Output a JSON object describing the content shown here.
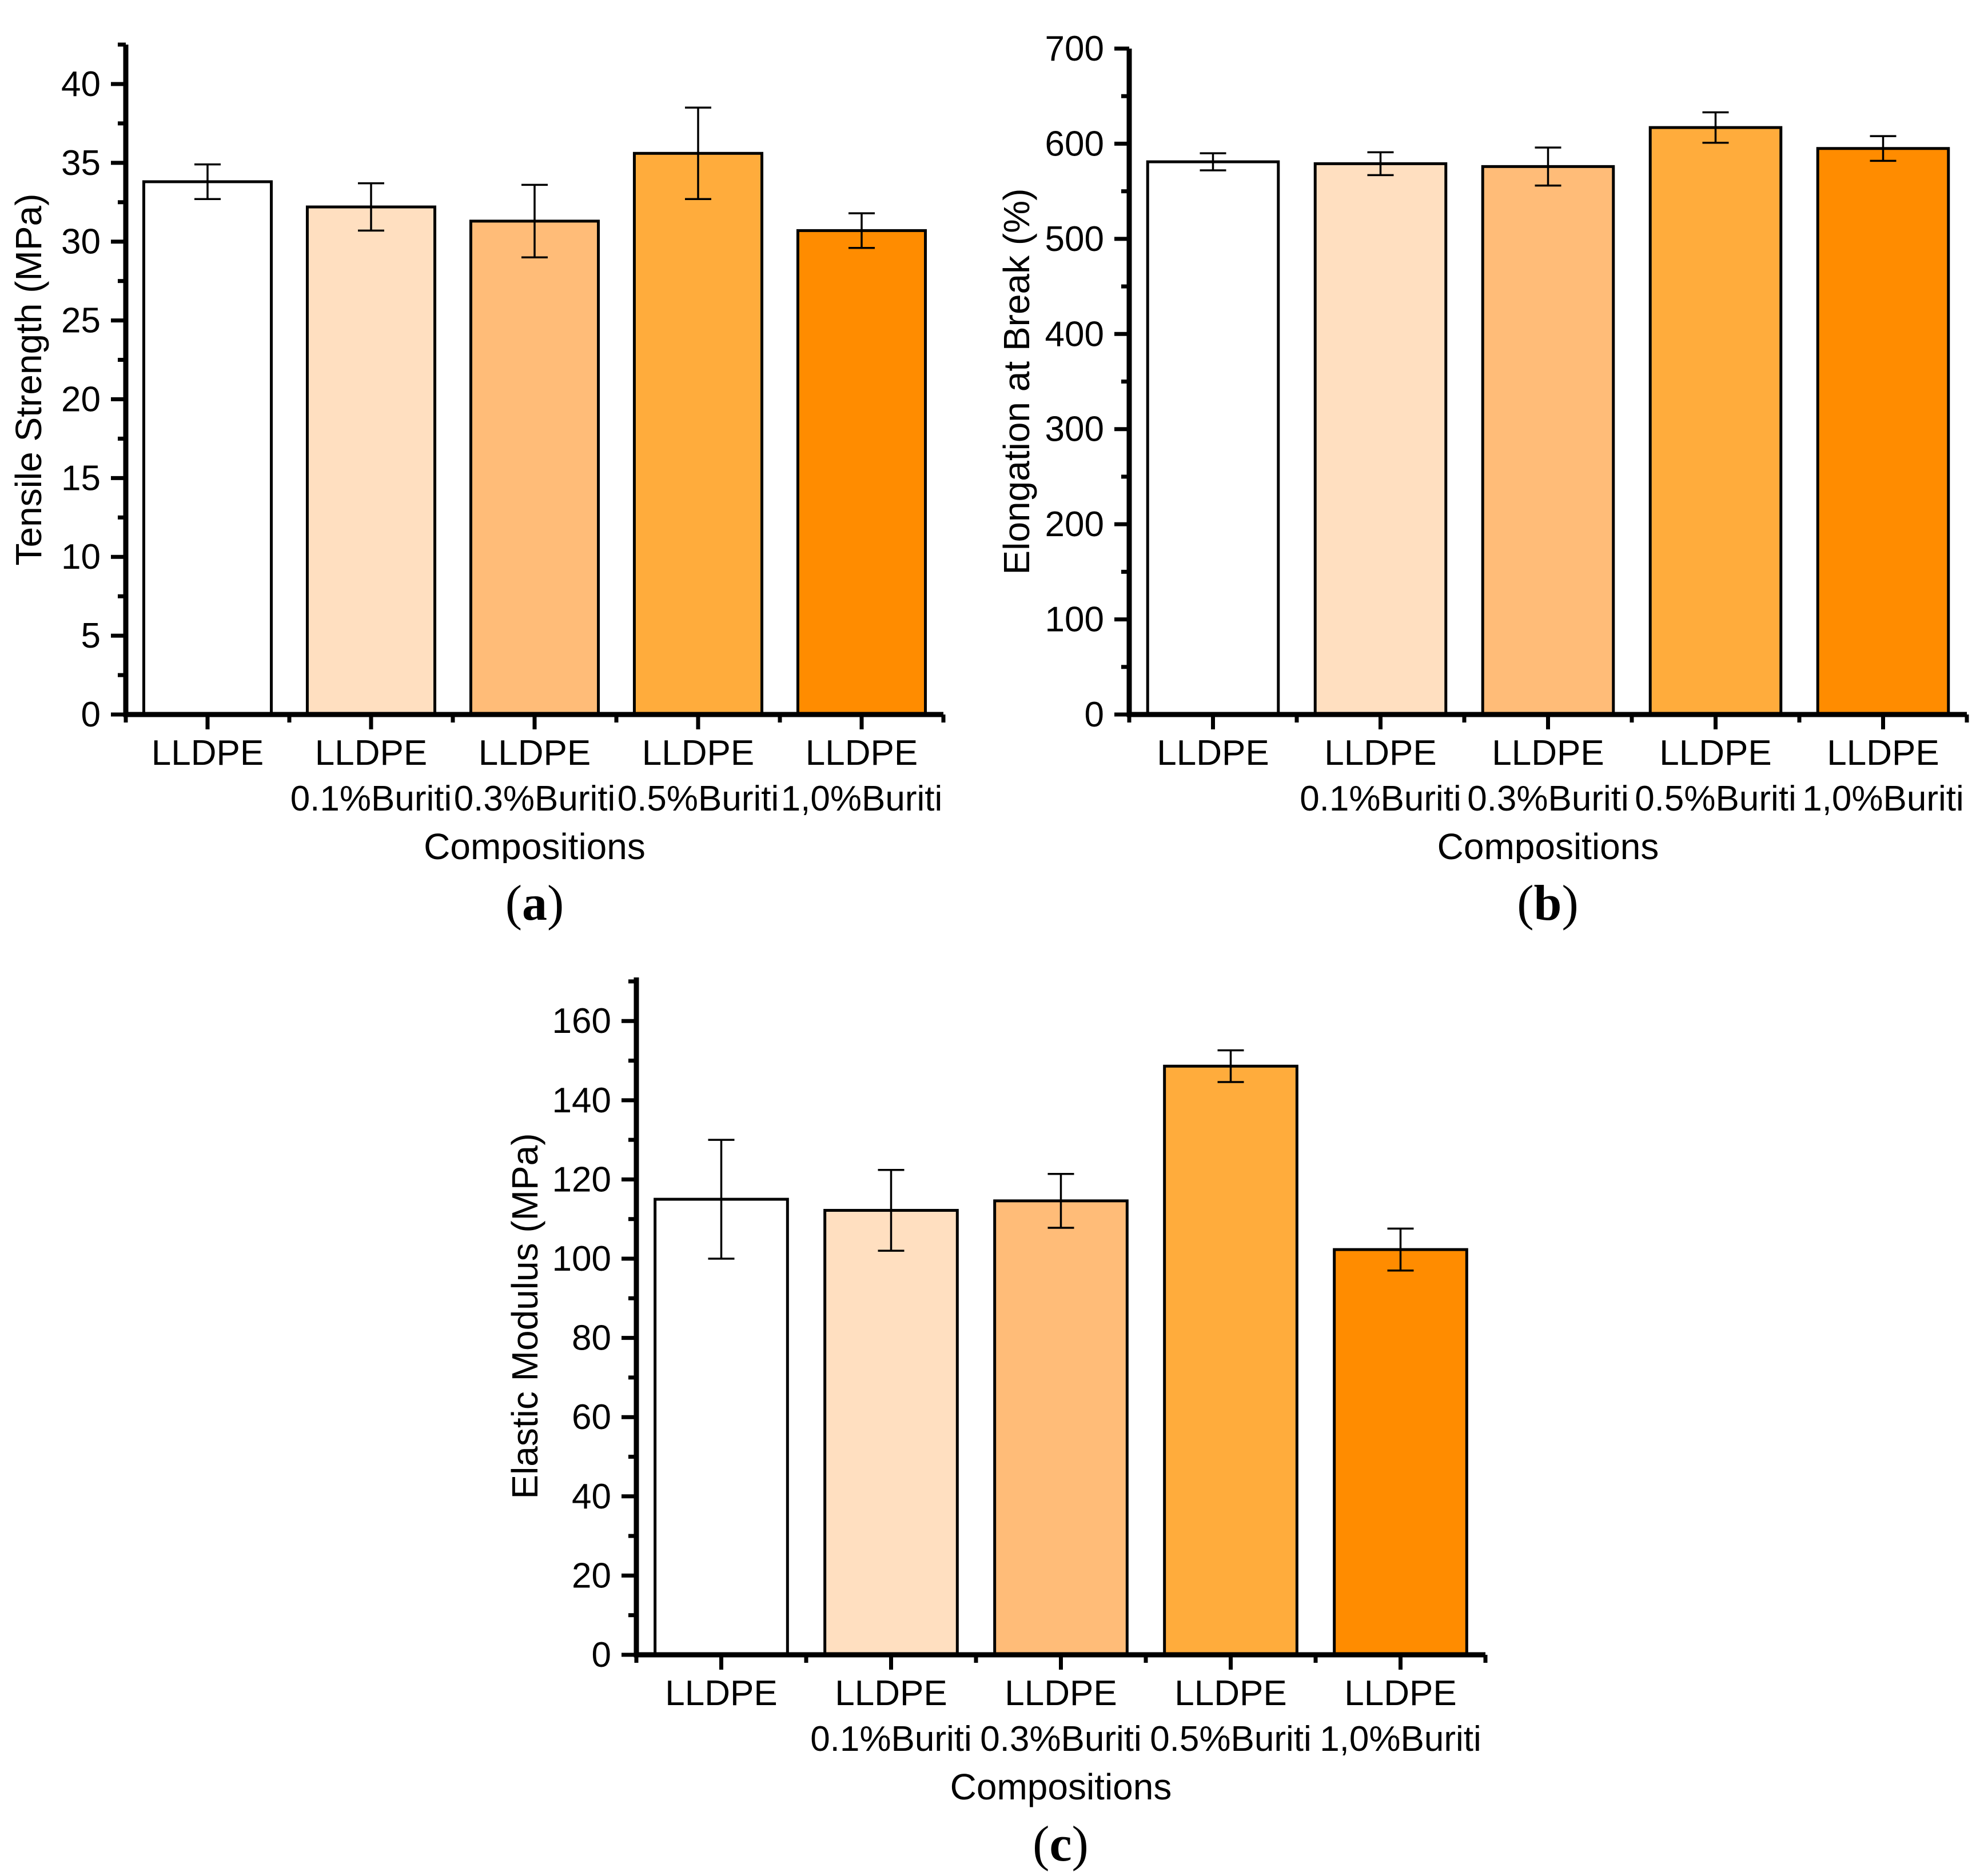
{
  "figure": {
    "background": "#FFFFFF",
    "bar_fill_colors": [
      "#FFFFFF",
      "#FFDFC0",
      "#FFBC78",
      "#FFAC3C",
      "#FF8C00"
    ],
    "bar_edge_color": "#000000",
    "axis_color": "#000000",
    "error_bar_color": "#000000"
  },
  "chart_data": [
    {
      "id": "a",
      "type": "bar",
      "caption_open": "(",
      "caption_letter": "a",
      "caption_close": ")",
      "xlabel": "Compositions",
      "ylabel": "Tensile Strength (MPa)",
      "categories_top": [
        "LLDPE",
        "LLDPE",
        "LLDPE",
        "LLDPE",
        "LLDPE"
      ],
      "categories_bottom": [
        "",
        "0.1%Buriti",
        "0.3%Buriti",
        "0.5%Buriti",
        "1,0%Buriti"
      ],
      "values": [
        33.8,
        32.2,
        31.3,
        35.6,
        30.7
      ],
      "errors": [
        1.1,
        1.5,
        2.3,
        2.9,
        1.1
      ],
      "ylim": [
        0,
        42.5
      ],
      "ytick_max": 40,
      "ytick_step": 5,
      "yminor_step": 2.5,
      "grid": false,
      "legend": null
    },
    {
      "id": "b",
      "type": "bar",
      "caption_open": "(",
      "caption_letter": "b",
      "caption_close": ")",
      "xlabel": "Compositions",
      "ylabel": "Elongation at Break (%)",
      "categories_top": [
        "LLDPE",
        "LLDPE",
        "LLDPE",
        "LLDPE",
        "LLDPE"
      ],
      "categories_bottom": [
        "",
        "0.1%Buriti",
        "0.3%Buriti",
        "0.5%Buriti",
        "1,0%Buriti"
      ],
      "values": [
        581,
        579,
        576,
        617,
        595
      ],
      "errors": [
        9,
        12,
        20,
        16,
        13
      ],
      "ylim": [
        0,
        700
      ],
      "ytick_max": 700,
      "ytick_step": 100,
      "yminor_step": 50,
      "grid": false,
      "legend": null
    },
    {
      "id": "c",
      "type": "bar",
      "caption_open": "(",
      "caption_letter": "c",
      "caption_close": ")",
      "xlabel": "Compositions",
      "ylabel": "Elastic Modulus (MPa)",
      "categories_top": [
        "LLDPE",
        "LLDPE",
        "LLDPE",
        "LLDPE",
        "LLDPE"
      ],
      "categories_bottom": [
        "",
        "0.1%Buriti",
        "0.3%Buriti",
        "0.5%Buriti",
        "1,0%Buriti"
      ],
      "values": [
        115.0,
        112.2,
        114.6,
        148.6,
        102.3
      ],
      "errors": [
        15.0,
        10.2,
        6.8,
        4.0,
        5.3
      ],
      "ylim": [
        0,
        171
      ],
      "ytick_max": 160,
      "ytick_step": 20,
      "yminor_step": 10,
      "grid": false,
      "legend": null
    }
  ]
}
